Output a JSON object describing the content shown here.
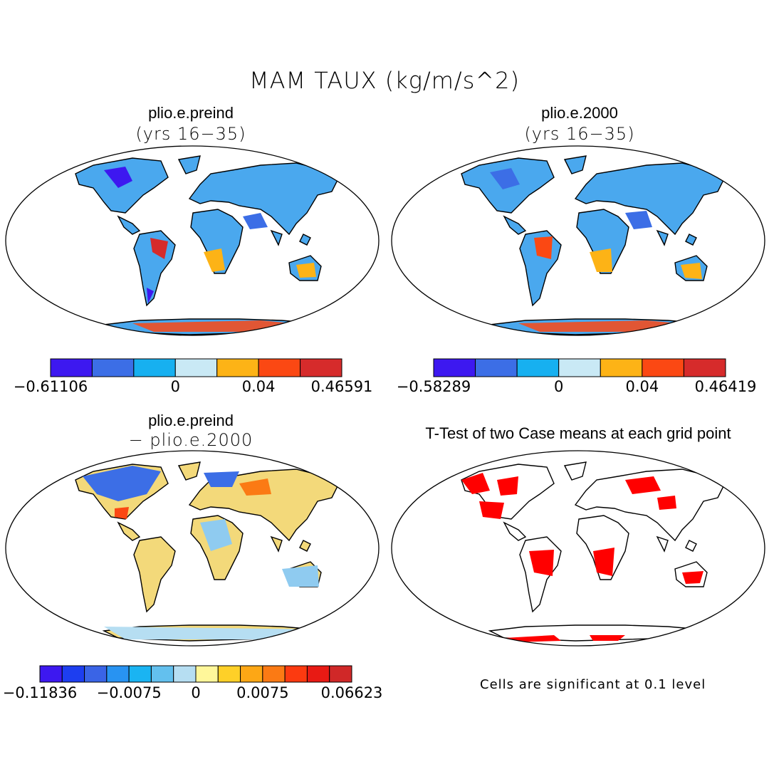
{
  "title": "MAM TAUX (kg/m/s^2)",
  "panels": [
    {
      "name": "panel-preind",
      "title": "plio.e.preind",
      "subtitle": "(yrs 16−35)"
    },
    {
      "name": "panel-2000",
      "title": "plio.e.2000",
      "subtitle": "(yrs 16−35)"
    },
    {
      "name": "panel-diff",
      "title": "plio.e.preind",
      "subtitle": "− plio.e.2000"
    },
    {
      "name": "panel-ttest",
      "title": "T-Test of two Case means at each grid point",
      "subtitle": ""
    }
  ],
  "colorbars": [
    {
      "name": "colorbar-preind",
      "colors": [
        "#3d18f0",
        "#3c6ee6",
        "#17b0f0",
        "#c9e9f5",
        "#fdb316",
        "#fb4813",
        "#d62b2b"
      ],
      "labels": [
        {
          "text": "−0.61106",
          "at": 0
        },
        {
          "text": "0",
          "at": 3
        },
        {
          "text": "0.04",
          "at": 5
        },
        {
          "text": "0.46591",
          "at": 7
        }
      ]
    },
    {
      "name": "colorbar-2000",
      "colors": [
        "#3d18f0",
        "#3c6ee6",
        "#17b0f0",
        "#c9e9f5",
        "#fdb316",
        "#fb4813",
        "#d62b2b"
      ],
      "labels": [
        {
          "text": "−0.58289",
          "at": 0
        },
        {
          "text": "0",
          "at": 3
        },
        {
          "text": "0.04",
          "at": 5
        },
        {
          "text": "0.46419",
          "at": 7
        }
      ]
    },
    {
      "name": "colorbar-diff",
      "colors": [
        "#3d18f0",
        "#1d3ef0",
        "#3a64e6",
        "#2893f2",
        "#1ab4f2",
        "#63c0ee",
        "#b6def2",
        "#fff79a",
        "#fed028",
        "#fda715",
        "#fb7a14",
        "#fc3a10",
        "#e81a14",
        "#d02828"
      ],
      "labels": [
        {
          "text": "−0.11836",
          "at": 0
        },
        {
          "text": "−0.0075",
          "at": 4
        },
        {
          "text": "0",
          "at": 7
        },
        {
          "text": "0.0075",
          "at": 10
        },
        {
          "text": "0.06623",
          "at": 14
        }
      ]
    }
  ],
  "note": "Cells are significant at 0.1 level",
  "colors": {
    "land_preind_a": "#17b0f0",
    "land_preind_b": "#3c6ee6",
    "land_warm": "#fdb316",
    "land_hot": "#d62b2b",
    "land_diff_a": "#8fcbf0",
    "land_diff_b": "#fed028",
    "significant": "#ff0000"
  }
}
